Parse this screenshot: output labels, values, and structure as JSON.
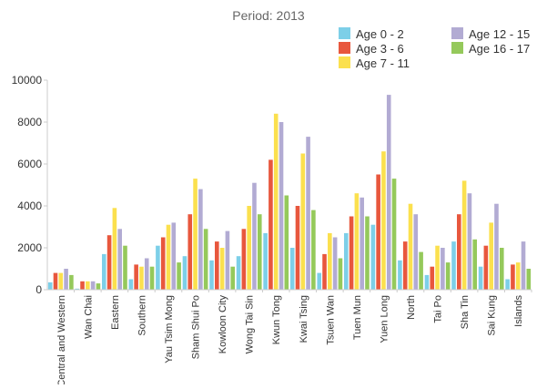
{
  "chart_data": {
    "type": "bar",
    "title": "Period: 2013",
    "xlabel": "",
    "ylabel": "",
    "ylim": [
      0,
      10000
    ],
    "yticks": [
      0,
      2000,
      4000,
      6000,
      8000,
      10000
    ],
    "ytick_labels": [
      "0",
      "2000",
      "4000",
      "6000",
      "8000",
      "10000"
    ],
    "grid": false,
    "legend_position": "top-right",
    "categories": [
      "Central and Western",
      "Wan Chai",
      "Eastern",
      "Southern",
      "Yau Tsim Mong",
      "Sham Shui Po",
      "Kowloon City",
      "Wong Tai Sin",
      "Kwun Tong",
      "Kwai Tsing",
      "Tsuen Wan",
      "Tuen Mun",
      "Yuen Long",
      "North",
      "Tai Po",
      "Sha Tin",
      "Sai Kung",
      "Islands"
    ],
    "series": [
      {
        "name": "Age 0 - 2",
        "color": "#7dcfe8",
        "values": [
          350,
          50,
          1700,
          500,
          2100,
          1600,
          1400,
          1600,
          2700,
          2000,
          800,
          2700,
          3100,
          1400,
          700,
          2300,
          1100,
          500
        ]
      },
      {
        "name": "Age 3 - 6",
        "color": "#e8573d",
        "values": [
          800,
          400,
          2600,
          1200,
          2500,
          3600,
          2300,
          2900,
          6200,
          4000,
          1700,
          3500,
          5500,
          2300,
          1100,
          3600,
          2100,
          1200
        ]
      },
      {
        "name": "Age 7 - 11",
        "color": "#fbe04e",
        "values": [
          800,
          400,
          3900,
          1100,
          3100,
          5300,
          2000,
          4000,
          8400,
          6500,
          2700,
          4600,
          6600,
          4100,
          2100,
          5200,
          3200,
          1300
        ]
      },
      {
        "name": "Age 12 - 15",
        "color": "#b2abd3",
        "values": [
          1000,
          400,
          2900,
          1500,
          3200,
          4800,
          2800,
          5100,
          8000,
          7300,
          2500,
          4400,
          9300,
          3600,
          2000,
          4600,
          4100,
          2300
        ]
      },
      {
        "name": "Age 16 - 17",
        "color": "#95c95b",
        "values": [
          700,
          300,
          2100,
          1100,
          1300,
          2900,
          1100,
          3600,
          4500,
          3800,
          1500,
          3500,
          5300,
          1800,
          1300,
          2400,
          2000,
          1000
        ]
      }
    ]
  }
}
